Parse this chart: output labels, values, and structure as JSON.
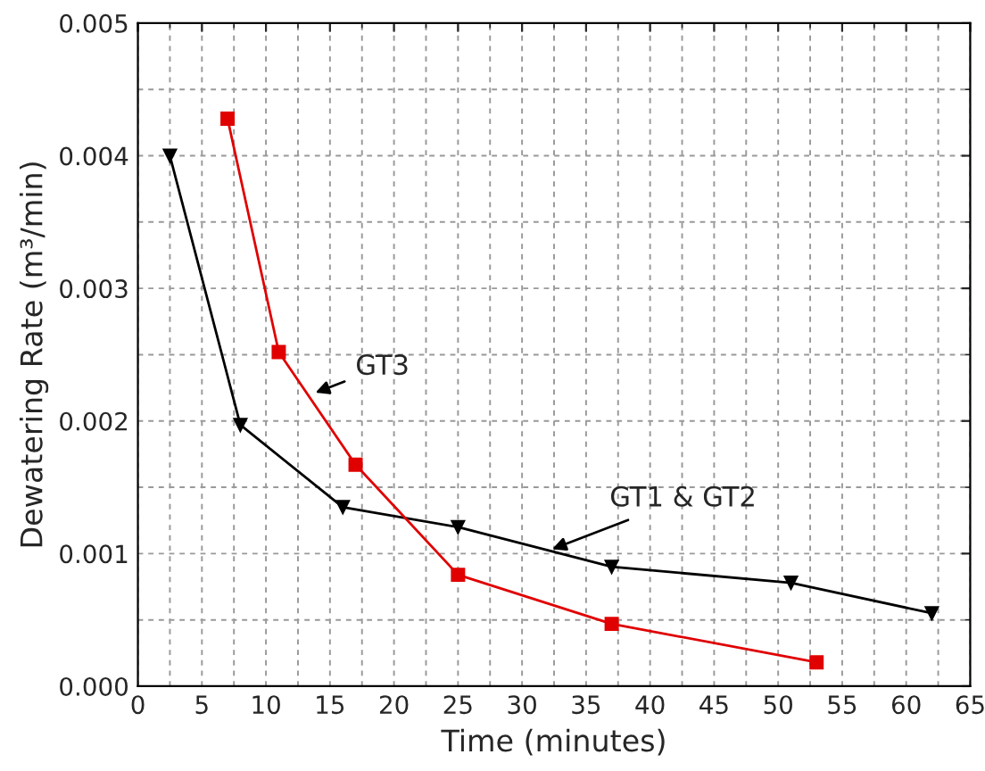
{
  "chart_data": {
    "type": "line",
    "xlabel": "Time (minutes)",
    "ylabel": "Dewatering Rate (m³/min)",
    "series": [
      {
        "color": "#000000",
        "marker": "triangle",
        "x": [
          2.5,
          8,
          16,
          25,
          37,
          51,
          62
        ],
        "values": [
          0.004,
          0.00197,
          0.00135,
          0.0012,
          0.0009,
          0.00078,
          0.00055
        ]
      },
      {
        "color": "#e00000",
        "marker": "square",
        "x": [
          7,
          11,
          17,
          25,
          37,
          53
        ],
        "values": [
          0.00428,
          0.00252,
          0.00167,
          0.00084,
          0.00047,
          0.00018
        ]
      }
    ],
    "xlim": [
      0,
      65
    ],
    "xticks": [
      0,
      5,
      10,
      15,
      20,
      25,
      30,
      35,
      40,
      45,
      50,
      55,
      60,
      65
    ],
    "ylim": [
      0,
      0.005
    ],
    "yticks": [
      {
        "value": 0,
        "label": "0.000"
      },
      {
        "value": 0.001,
        "label": "0.001"
      },
      {
        "value": 0.002,
        "label": "0.002"
      },
      {
        "value": 0.003,
        "label": "0.003"
      },
      {
        "value": 0.004,
        "label": "0.004"
      },
      {
        "value": 0.005,
        "label": "0.005"
      }
    ],
    "grid": true,
    "line_style": "solid",
    "annotations": [
      {
        "text": "GT3",
        "x": 13.5,
        "y": 0.0022
      },
      {
        "text": "GT1 & GT2",
        "x": 32,
        "y": 0.00102
      }
    ]
  }
}
